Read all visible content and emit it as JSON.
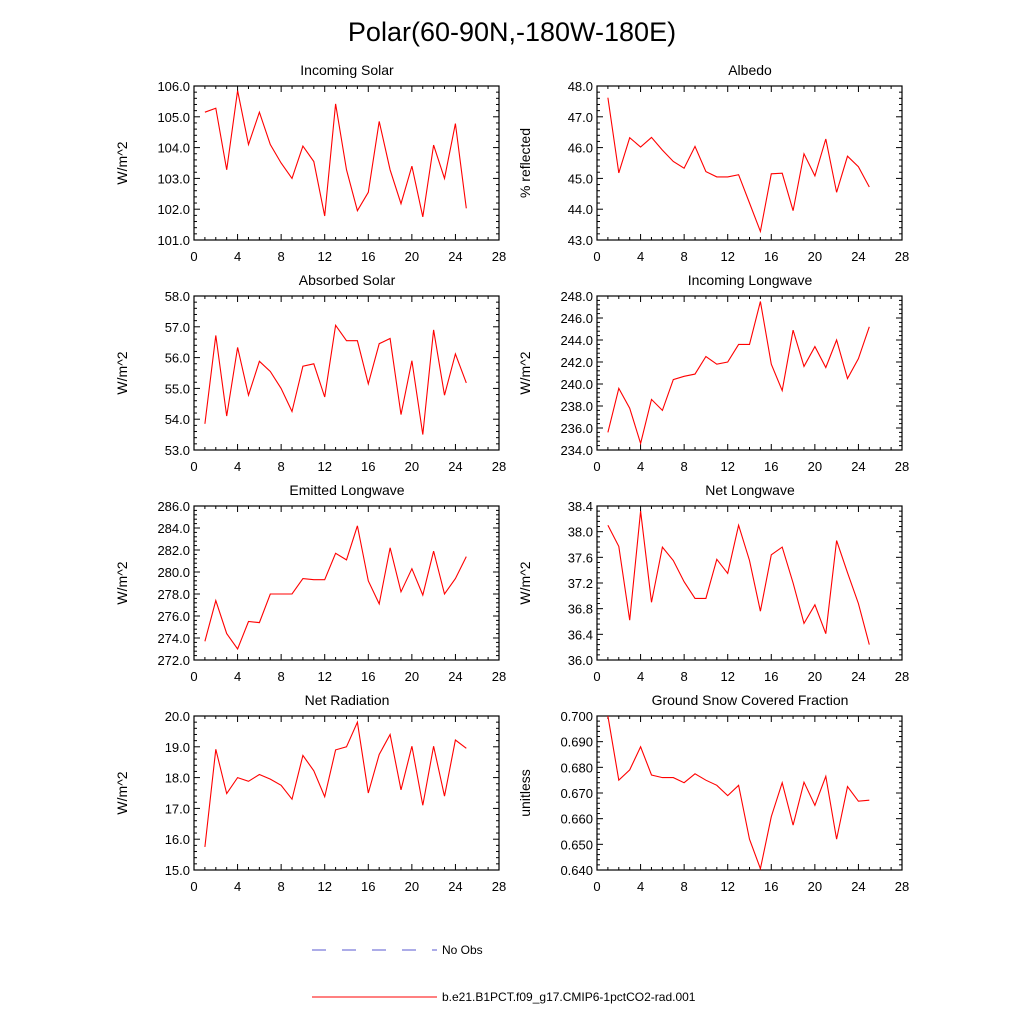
{
  "title": "Polar(60-90N,-180W-180E)",
  "legend": [
    {
      "label": "No Obs",
      "color": "#5a5ad0",
      "style": "dashed"
    },
    {
      "label": "b.e21.B1PCT.f09_g17.CMIP6-1pctCO2-rad.001",
      "color": "#ff0000",
      "style": "solid"
    }
  ],
  "chart_data": [
    {
      "type": "line",
      "title": "Incoming Solar",
      "ylabel": "W/m^2",
      "xlim": [
        0,
        28
      ],
      "xticks": [
        "0",
        "4",
        "8",
        "12",
        "16",
        "20",
        "24",
        "28"
      ],
      "ylim": [
        101.0,
        106.0
      ],
      "yticks": [
        "101.0",
        "102.0",
        "103.0",
        "104.0",
        "105.0",
        "106.0"
      ],
      "series": [
        {
          "color": "#ff0000",
          "x": [
            1,
            2,
            3,
            4,
            5,
            6,
            7,
            8,
            9,
            10,
            11,
            12,
            13,
            14,
            15,
            16,
            17,
            18,
            19,
            20,
            21,
            22,
            23,
            24,
            25
          ],
          "values": [
            105.15,
            105.28,
            103.28,
            105.85,
            104.1,
            105.15,
            104.1,
            103.5,
            103.0,
            104.05,
            103.55,
            101.78,
            105.42,
            103.28,
            101.95,
            102.55,
            104.85,
            103.28,
            102.18,
            103.4,
            101.75,
            104.08,
            103.0,
            104.78,
            102.03
          ]
        }
      ]
    },
    {
      "type": "line",
      "title": "Albedo",
      "ylabel": "% reflected",
      "xlim": [
        0,
        28
      ],
      "xticks": [
        "0",
        "4",
        "8",
        "12",
        "16",
        "20",
        "24",
        "28"
      ],
      "ylim": [
        43.0,
        48.0
      ],
      "yticks": [
        "43.0",
        "44.0",
        "45.0",
        "46.0",
        "47.0",
        "48.0"
      ],
      "series": [
        {
          "color": "#ff0000",
          "x": [
            1,
            2,
            3,
            4,
            5,
            6,
            7,
            8,
            9,
            10,
            11,
            12,
            13,
            14,
            15,
            16,
            17,
            18,
            19,
            20,
            21,
            22,
            23,
            24,
            25
          ],
          "values": [
            47.62,
            45.18,
            46.32,
            46.02,
            46.33,
            45.92,
            45.55,
            45.33,
            46.04,
            45.22,
            45.05,
            45.05,
            45.12,
            44.2,
            43.28,
            45.15,
            45.17,
            43.95,
            45.8,
            45.08,
            46.28,
            44.55,
            45.72,
            45.38,
            44.72
          ]
        }
      ]
    },
    {
      "type": "line",
      "title": "Absorbed Solar",
      "ylabel": "W/m^2",
      "xlim": [
        0,
        28
      ],
      "xticks": [
        "0",
        "4",
        "8",
        "12",
        "16",
        "20",
        "24",
        "28"
      ],
      "ylim": [
        53.0,
        58.0
      ],
      "yticks": [
        "53.0",
        "54.0",
        "55.0",
        "56.0",
        "57.0",
        "58.0"
      ],
      "series": [
        {
          "color": "#ff0000",
          "x": [
            1,
            2,
            3,
            4,
            5,
            6,
            7,
            8,
            9,
            10,
            11,
            12,
            13,
            14,
            15,
            16,
            17,
            18,
            19,
            20,
            21,
            22,
            23,
            24,
            25
          ],
          "values": [
            53.85,
            56.72,
            54.1,
            56.33,
            54.78,
            55.88,
            55.55,
            55.0,
            54.25,
            55.72,
            55.8,
            54.72,
            57.05,
            56.55,
            56.55,
            55.15,
            56.45,
            56.62,
            54.15,
            55.9,
            53.5,
            56.9,
            54.78,
            56.12,
            55.18
          ]
        }
      ]
    },
    {
      "type": "line",
      "title": "Incoming Longwave",
      "ylabel": "W/m^2",
      "xlim": [
        0,
        28
      ],
      "xticks": [
        "0",
        "4",
        "8",
        "12",
        "16",
        "20",
        "24",
        "28"
      ],
      "ylim": [
        234.0,
        248.0
      ],
      "yticks": [
        "234.0",
        "236.0",
        "238.0",
        "240.0",
        "242.0",
        "244.0",
        "246.0",
        "248.0"
      ],
      "series": [
        {
          "color": "#ff0000",
          "x": [
            1,
            2,
            3,
            4,
            5,
            6,
            7,
            8,
            9,
            10,
            11,
            12,
            13,
            14,
            15,
            16,
            17,
            18,
            19,
            20,
            21,
            22,
            23,
            24,
            25
          ],
          "values": [
            235.6,
            239.6,
            237.8,
            234.6,
            238.6,
            237.6,
            240.4,
            240.7,
            240.9,
            242.5,
            241.8,
            242.0,
            243.6,
            243.6,
            247.5,
            241.8,
            239.4,
            244.9,
            241.6,
            243.4,
            241.5,
            244.0,
            240.5,
            242.3,
            245.2
          ]
        }
      ]
    },
    {
      "type": "line",
      "title": "Emitted Longwave",
      "ylabel": "W/m^2",
      "xlim": [
        0,
        28
      ],
      "xticks": [
        "0",
        "4",
        "8",
        "12",
        "16",
        "20",
        "24",
        "28"
      ],
      "ylim": [
        272.0,
        286.0
      ],
      "yticks": [
        "272.0",
        "274.0",
        "276.0",
        "278.0",
        "280.0",
        "282.0",
        "284.0",
        "286.0"
      ],
      "series": [
        {
          "color": "#ff0000",
          "x": [
            1,
            2,
            3,
            4,
            5,
            6,
            7,
            8,
            9,
            10,
            11,
            12,
            13,
            14,
            15,
            16,
            17,
            18,
            19,
            20,
            21,
            22,
            23,
            24,
            25
          ],
          "values": [
            273.7,
            277.4,
            274.4,
            273.0,
            275.5,
            275.4,
            278.0,
            278.0,
            278.0,
            279.4,
            279.3,
            279.3,
            281.7,
            281.1,
            284.2,
            279.2,
            277.1,
            282.2,
            278.2,
            280.3,
            277.9,
            281.9,
            278.0,
            279.4,
            281.4
          ]
        }
      ]
    },
    {
      "type": "line",
      "title": "Net Longwave",
      "ylabel": "W/m^2",
      "xlim": [
        0,
        28
      ],
      "xticks": [
        "0",
        "4",
        "8",
        "12",
        "16",
        "20",
        "24",
        "28"
      ],
      "ylim": [
        36.0,
        38.4
      ],
      "yticks": [
        "36.0",
        "36.4",
        "36.8",
        "37.2",
        "37.6",
        "38.0",
        "38.4"
      ],
      "series": [
        {
          "color": "#ff0000",
          "x": [
            1,
            2,
            3,
            4,
            5,
            6,
            7,
            8,
            9,
            10,
            11,
            12,
            13,
            14,
            15,
            16,
            17,
            18,
            19,
            20,
            21,
            22,
            23,
            24,
            25
          ],
          "values": [
            38.1,
            37.77,
            36.62,
            38.32,
            36.9,
            37.76,
            37.55,
            37.22,
            36.96,
            36.96,
            37.57,
            37.35,
            38.1,
            37.55,
            36.76,
            37.64,
            37.76,
            37.2,
            36.57,
            36.86,
            36.41,
            37.86,
            37.36,
            36.88,
            36.24
          ]
        }
      ]
    },
    {
      "type": "line",
      "title": "Net Radiation",
      "ylabel": "W/m^2",
      "xlim": [
        0,
        28
      ],
      "xticks": [
        "0",
        "4",
        "8",
        "12",
        "16",
        "20",
        "24",
        "28"
      ],
      "ylim": [
        15.0,
        20.0
      ],
      "yticks": [
        "15.0",
        "16.0",
        "17.0",
        "18.0",
        "19.0",
        "20.0"
      ],
      "series": [
        {
          "color": "#ff0000",
          "x": [
            1,
            2,
            3,
            4,
            5,
            6,
            7,
            8,
            9,
            10,
            11,
            12,
            13,
            14,
            15,
            16,
            17,
            18,
            19,
            20,
            21,
            22,
            23,
            24,
            25
          ],
          "values": [
            15.75,
            18.92,
            17.48,
            18.0,
            17.88,
            18.1,
            17.95,
            17.75,
            17.3,
            18.72,
            18.22,
            17.38,
            18.9,
            19.0,
            19.8,
            17.5,
            18.75,
            19.4,
            17.6,
            19.02,
            17.1,
            19.02,
            17.4,
            19.22,
            18.95
          ]
        }
      ]
    },
    {
      "type": "line",
      "title": "Ground Snow Covered Fraction",
      "ylabel": "unitless",
      "xlim": [
        0,
        28
      ],
      "xticks": [
        "0",
        "4",
        "8",
        "12",
        "16",
        "20",
        "24",
        "28"
      ],
      "ylim": [
        0.64,
        0.7
      ],
      "yticks": [
        "0.640",
        "0.650",
        "0.660",
        "0.670",
        "0.680",
        "0.690",
        "0.700"
      ],
      "series": [
        {
          "color": "#ff0000",
          "x": [
            1,
            2,
            3,
            4,
            5,
            6,
            7,
            8,
            9,
            10,
            11,
            12,
            13,
            14,
            15,
            16,
            17,
            18,
            19,
            20,
            21,
            22,
            23,
            24,
            25
          ],
          "values": [
            0.7,
            0.675,
            0.679,
            0.688,
            0.677,
            0.676,
            0.676,
            0.674,
            0.6775,
            0.675,
            0.673,
            0.669,
            0.673,
            0.652,
            0.6405,
            0.6608,
            0.674,
            0.6575,
            0.6742,
            0.6652,
            0.6765,
            0.652,
            0.6725,
            0.6668,
            0.6672
          ]
        }
      ]
    }
  ]
}
